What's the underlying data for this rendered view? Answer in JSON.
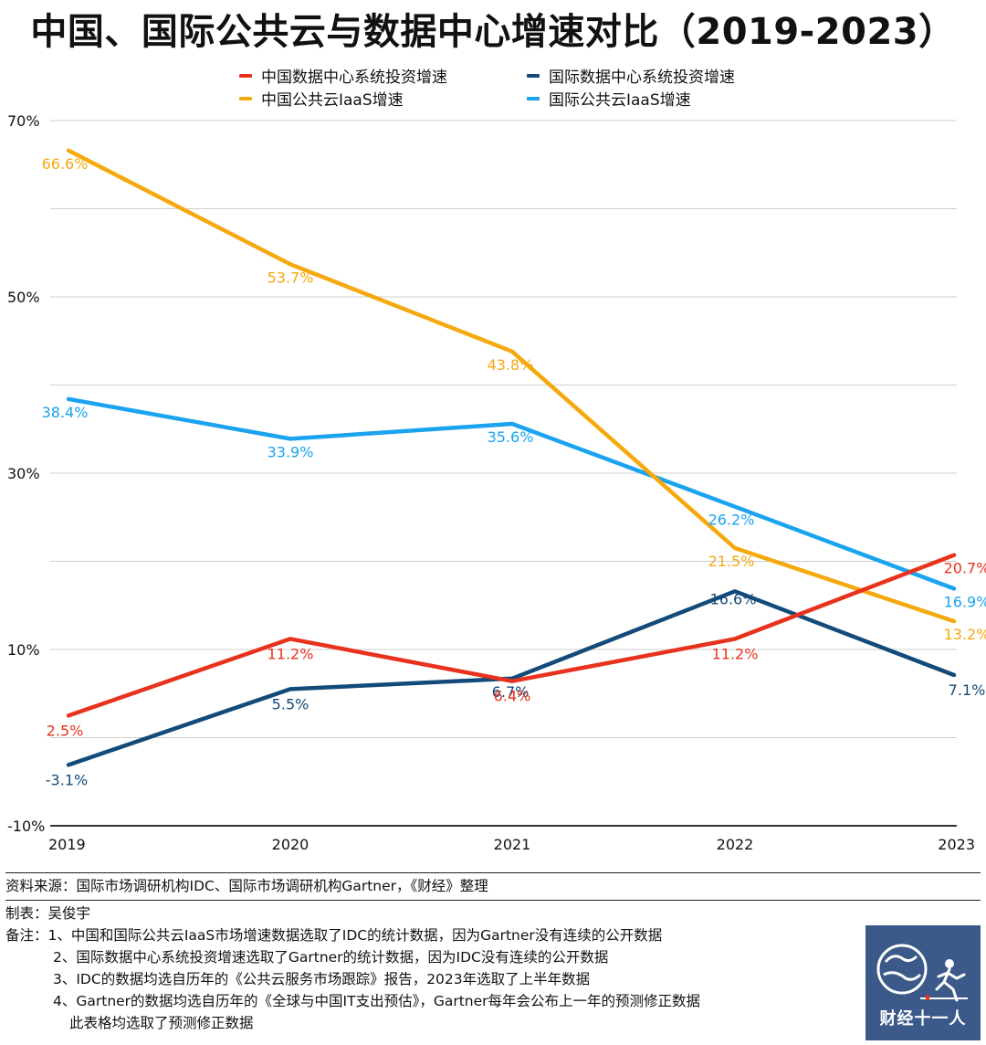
{
  "chart_data": {
    "type": "line",
    "title": "中国、国际公共云与数据中心增速对比（2019-2023）",
    "categories": [
      "2019",
      "2020",
      "2021",
      "2022",
      "2023"
    ],
    "y_ticks": [
      "70%",
      "50%",
      "30%",
      "10%",
      "-10%"
    ],
    "ylim": [
      -10,
      70
    ],
    "grid": true,
    "legend_position": "top",
    "series": [
      {
        "name": "中国数据中心系统投资增速",
        "color": "#e8321e",
        "values": [
          2.5,
          11.2,
          6.4,
          11.2,
          20.7
        ],
        "labels": [
          "2.5%",
          "11.2%",
          "6.4%",
          "11.2%",
          "20.7%"
        ]
      },
      {
        "name": "国际数据中心系统投资增速",
        "color": "#124a7a",
        "values": [
          -3.1,
          5.5,
          6.7,
          16.6,
          7.1
        ],
        "labels": [
          "-3.1%",
          "5.5%",
          "6.7%",
          "16.6%",
          "7.1%"
        ]
      },
      {
        "name": "中国公共云IaaS增速",
        "color": "#f5a90f",
        "values": [
          66.6,
          53.7,
          43.8,
          21.5,
          13.2
        ],
        "labels": [
          "66.6%",
          "53.7%",
          "43.8%",
          "21.5%",
          "13.2%"
        ]
      },
      {
        "name": "国际公共云IaaS增速",
        "color": "#1aa3ef",
        "values": [
          38.4,
          33.9,
          35.6,
          26.2,
          16.9
        ],
        "labels": [
          "38.4%",
          "33.9%",
          "35.6%",
          "26.2%",
          "16.9%"
        ]
      }
    ]
  },
  "notes": {
    "source": "资料来源：国际市场调研机构IDC、国际市场调研机构Gartner，《财经》整理",
    "author": "制表：吴俊宇",
    "remark_1": "备注：1、中国和国际公共云IaaS市场增速数据选取了IDC的统计数据，因为Gartner没有连续的公开数据",
    "remark_2": "2、国际数据中心系统投资增速选取了Gartner的统计数据，因为IDC没有连续的公开数据",
    "remark_3": "3、IDC的数据均选自历年的《公共云服务市场跟踪》报告，2023年选取了上半年数据",
    "remark_4": "4、Gartner的数据均选自历年的《全球与中国IT支出预估》，Gartner每年会公布上一年的预测修正数据",
    "remark_5": "此表格均选取了预测修正数据"
  },
  "logo": {
    "text": "财经十一人"
  }
}
